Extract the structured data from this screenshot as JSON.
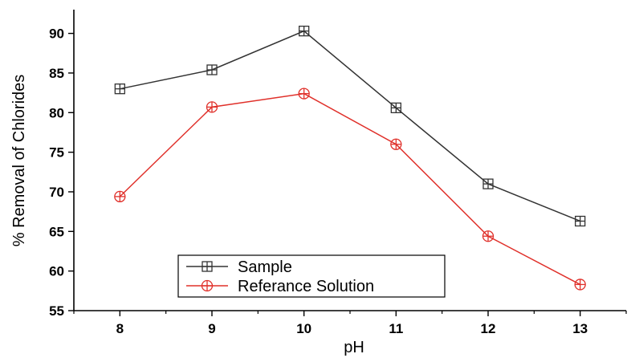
{
  "chart_data": {
    "type": "line",
    "title": "",
    "xlabel": "pH",
    "ylabel": "% Removal of Chlorides",
    "x": [
      8,
      9,
      10,
      11,
      12,
      13
    ],
    "x_tick_labels": [
      "8",
      "9",
      "10",
      "11",
      "12",
      "13"
    ],
    "xlim": [
      7.5,
      13.5
    ],
    "ylim": [
      55,
      93
    ],
    "y_ticks": [
      55,
      60,
      65,
      70,
      75,
      80,
      85,
      90
    ],
    "y_tick_labels": [
      "55",
      "60",
      "65",
      "70",
      "75",
      "80",
      "85",
      "90"
    ],
    "grid": false,
    "legend_position": "bottom-left",
    "series": [
      {
        "name": "Sample",
        "values": [
          83.0,
          85.4,
          90.3,
          80.6,
          71.0,
          66.3
        ],
        "color": "#333333",
        "marker": "square-cross"
      },
      {
        "name": "Referance Solution",
        "values": [
          69.4,
          80.7,
          82.4,
          76.0,
          64.4,
          58.3
        ],
        "color": "#e0302a",
        "marker": "circle-cross"
      }
    ]
  }
}
